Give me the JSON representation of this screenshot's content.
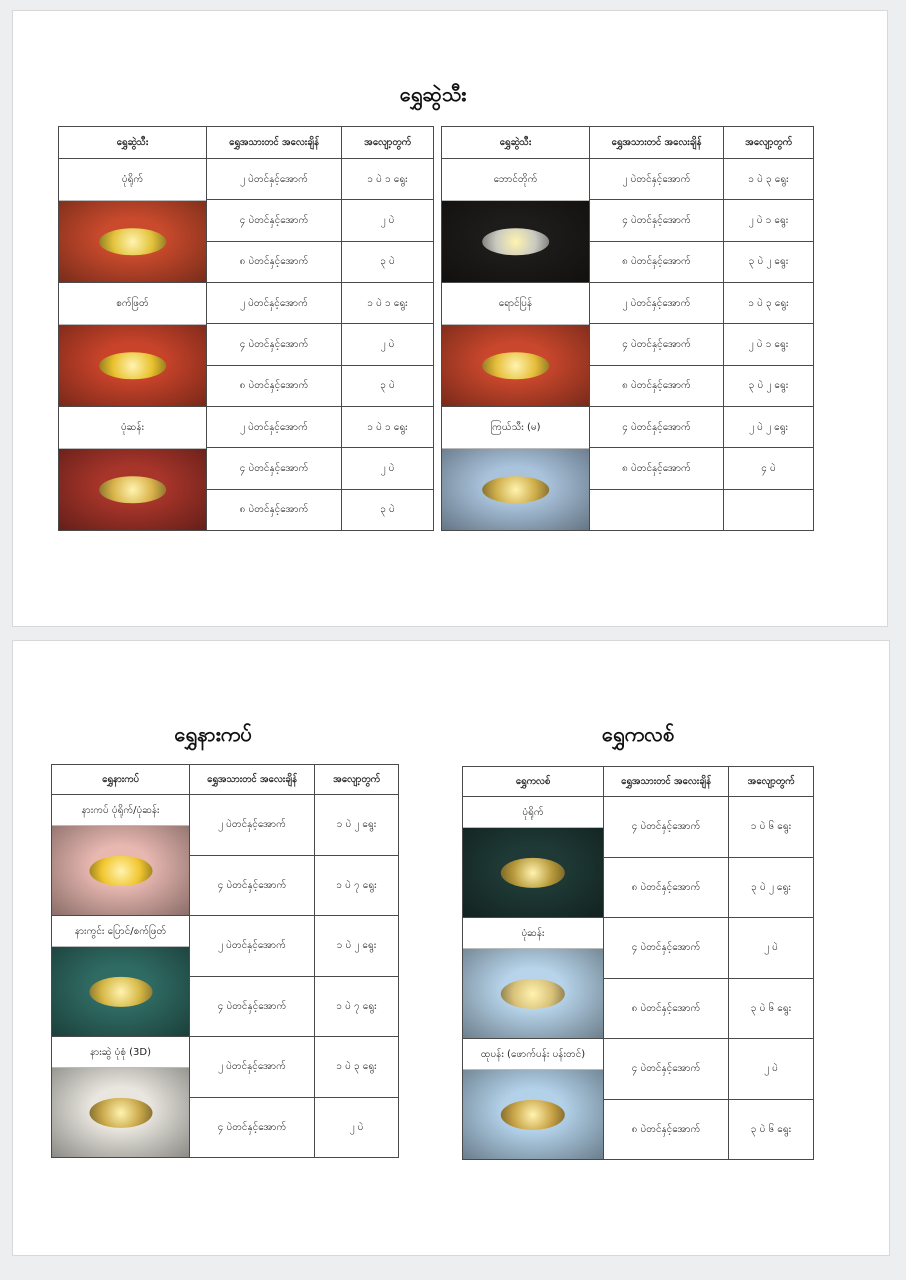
{
  "page1": {
    "title": "ရွှေဆွဲသီး",
    "tables": [
      {
        "headers": [
          "ရွှေဆွဲသီး",
          "ရွှေအသားတင် အလေးချိန်",
          "အလျော့တွက်"
        ],
        "groups": [
          {
            "name": "ပုံရိုက်",
            "image": "gold-pendant-photo",
            "bg": "#c94a2c",
            "jewel": "#e2c23a",
            "rows": [
              [
                "၂ ပဲတင်နှင့်အောက်",
                "၁ ပဲ ၁ ရွေး"
              ],
              [
                "၄ ပဲတင်နှင့်အောက်",
                "၂ ပဲ"
              ],
              [
                "၈ ပဲတင်နှင့်အောက်",
                "၃ ပဲ"
              ]
            ]
          },
          {
            "name": "စက်ဖြတ်",
            "image": "gold-pendant-photo",
            "bg": "#c8432a",
            "jewel": "#e8c12e",
            "rows": [
              [
                "၂ ပဲတင်နှင့်အောက်",
                "၁ ပဲ ၁ ရွေး"
              ],
              [
                "၄ ပဲတင်နှင့်အောက်",
                "၂ ပဲ"
              ],
              [
                "၈ ပဲတင်နှင့်အောက်",
                "၃ ပဲ"
              ]
            ]
          },
          {
            "name": "ပုံဆန်း",
            "image": "gold-pendant-photo",
            "bg": "#a8352a",
            "jewel": "#d9b34a",
            "rows": [
              [
                "၂ ပဲတင်နှင့်အောက်",
                "၁ ပဲ ၁ ရွေး"
              ],
              [
                "၄ ပဲတင်နှင့်အောက်",
                "၂ ပဲ"
              ],
              [
                "၈ ပဲတင်နှင့်အောက်",
                "၃ ပဲ"
              ]
            ]
          }
        ]
      },
      {
        "headers": [
          "ရွှေဆွဲသီး",
          "ရွှေအသားတင် အလေးချိန်",
          "အလျော့တွက်"
        ],
        "groups": [
          {
            "name": "ဘောင်တိုက်",
            "image": "silver-pendants-photo",
            "bg": "#1e1c1a",
            "jewel": "#c9c9c0",
            "rows": [
              [
                "၂ ပဲတင်နှင့်အောက်",
                "၁ ပဲ ၃ ရွေး"
              ],
              [
                "၄ ပဲတင်နှင့်အောက်",
                "၂ ပဲ ၁ ရွေး"
              ],
              [
                "၈ ပဲတင်နှင့်အောက်",
                "၃ ပဲ ၂ ရွေး"
              ]
            ]
          },
          {
            "name": "ရောင်ပြန်",
            "image": "gold-pendant-photo",
            "bg": "#c9472c",
            "jewel": "#e6bd3a",
            "rows": [
              [
                "၂ ပဲတင်နှင့်အောက်",
                "၁ ပဲ ၃ ရွေး"
              ],
              [
                "၄ ပဲတင်နှင့်အောက်",
                "၂ ပဲ ၁ ရွေး"
              ],
              [
                "၈ ပဲတင်နှင့်အောက်",
                "၃ ပဲ ၂ ရွေး"
              ]
            ]
          },
          {
            "name": "ကြယ်သီး (မ)",
            "image": "gold-buttons-photo",
            "bg": "#a9c3dc",
            "jewel": "#cfae4a",
            "rows": [
              [
                "၄ ပဲတင်နှင့်အောက်",
                "၂ ပဲ ၂ ရွေး"
              ],
              [
                "၈ ပဲတင်နှင့်အောက်",
                "၄ ပဲ"
              ],
              [
                "",
                ""
              ]
            ]
          }
        ]
      }
    ]
  },
  "page2": {
    "sections": [
      {
        "title": "ရွှေနားကပ်",
        "headers": [
          "ရွှေနားကပ်",
          "ရွှေအသားတင် အလေးချိန်",
          "အလျော့တွက်"
        ],
        "groups": [
          {
            "name": "နားကပ် ပုံရိုက်/ပုံဆန်း",
            "image": "gold-earring-photo",
            "bg": "#e7b7b0",
            "jewel": "#f0c630",
            "rows": [
              [
                "၂ ပဲတင်နှင့်အောက်",
                "၁ ပဲ ၂ ရွေး"
              ],
              [
                "၄ ပဲတင်နှင့်အောက်",
                "၁ ပဲ ၇ ရွေး"
              ]
            ]
          },
          {
            "name": "နားကွင်း ပြောင်/စက်ဖြတ်",
            "image": "gold-hoop-earrings-photo",
            "bg": "#2f6b63",
            "jewel": "#d6b846",
            "rows": [
              [
                "၂ ပဲတင်နှင့်အောက်",
                "၁ ပဲ ၂ ရွေး"
              ],
              [
                "၄ ပဲတင်နှင့်အောက်",
                "၁ ပဲ ၇ ရွေး"
              ]
            ]
          },
          {
            "name": "နားဆွဲ ပုံစုံ (3D)",
            "image": "gold-drop-earrings-photo",
            "bg": "#e9e6df",
            "jewel": "#c9a84a",
            "rows": [
              [
                "၂ ပဲတင်နှင့်အောက်",
                "၁ ပဲ ၃ ရွေး"
              ],
              [
                "၄ ပဲတင်နှင့်အောက်",
                "၂ ပဲ"
              ]
            ]
          }
        ]
      },
      {
        "title": "ရွှေကလစ်",
        "headers": [
          "ရွှေကလစ်",
          "ရွှေအသားတင် အလေးချိန်",
          "အလျော့တွက်"
        ],
        "groups": [
          {
            "name": "ပုံရိုက်",
            "image": "gold-clip-photo",
            "bg": "#1f3a36",
            "jewel": "#b89a3c",
            "rows": [
              [
                "၄ ပဲတင်နှင့်အောက်",
                "၁ ပဲ ၆ ရွေး"
              ],
              [
                "၈ ပဲတင်နှင့်အောက်",
                "၃ ပဲ ၂ ရွေး"
              ]
            ]
          },
          {
            "name": "ပုံဆန်း",
            "image": "gold-clip-photo",
            "bg": "#b7d4ea",
            "jewel": "#d9c27a",
            "rows": [
              [
                "၄ ပဲတင်နှင့်အောက်",
                "၂ ပဲ"
              ],
              [
                "၈ ပဲတင်နှင့်အောက်",
                "၃ ပဲ ၆ ရွေး"
              ]
            ]
          },
          {
            "name": "ထုပန်း (ဖောက်ပန်း ပန်းတင်)",
            "image": "gold-clip-photo",
            "bg": "#b3d2ea",
            "jewel": "#c9a447",
            "rows": [
              [
                "၄ ပဲတင်နှင့်အောက်",
                "၂ ပဲ"
              ],
              [
                "၈ ပဲတင်နှင့်အောက်",
                "၃ ပဲ ၆ ရွေး"
              ]
            ]
          }
        ]
      }
    ]
  }
}
